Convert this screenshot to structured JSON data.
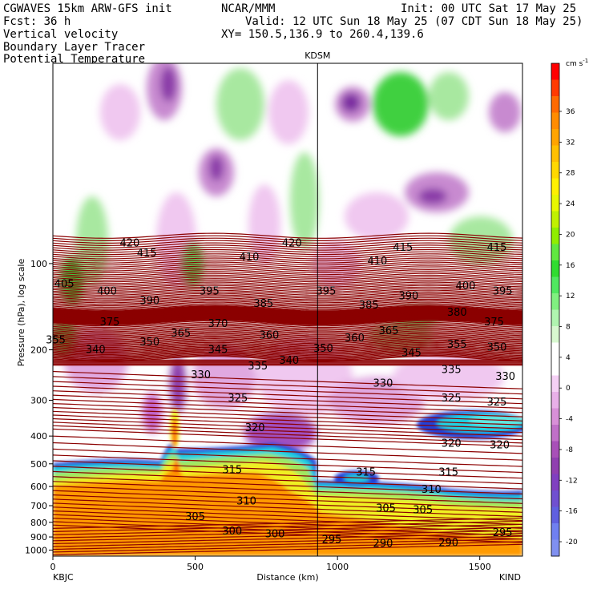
{
  "header": {
    "line1_left": "CGWAVES 15km ARW-GFS init",
    "line1_mid": "NCAR/MMM",
    "line1_right": "Init: 00 UTC Sat 17 May 25",
    "line2_left": "Fcst:   36 h",
    "line2_right": "Valid: 12 UTC Sun 18 May 25 (07 CDT Sun 18 May 25)",
    "line3_left": "Vertical velocity",
    "line3_right": "XY= 150.5,136.9 to 260.4,139.6",
    "line4_left": "Boundary Layer Tracer",
    "line5_left": "Potential Temperature",
    "line5_color": "#a00000"
  },
  "chart_data": {
    "type": "heatmap",
    "title": "",
    "xlabel": "Distance (km)",
    "ylabel": "Pressure (hPa), log scale",
    "xlim": [
      0,
      1650
    ],
    "ylim": [
      1050,
      20
    ],
    "y_scale": "log",
    "x_ticks": [
      0,
      500,
      1000,
      1500
    ],
    "y_ticks": [
      100,
      200,
      300,
      400,
      500,
      600,
      700,
      800,
      900,
      1000
    ],
    "left_station": "KBJC",
    "right_station": "KIND",
    "marker_station": "KDSM",
    "marker_distance": 930,
    "colorbar": {
      "unit_label": "cm s",
      "unit_exp": "-1",
      "labels": [
        36,
        32,
        28,
        24,
        20,
        16,
        12,
        8,
        4,
        0,
        -4,
        -8,
        -12,
        -16,
        -20
      ],
      "colors": [
        "#ff0000",
        "#ff3a00",
        "#ff6a00",
        "#ff8c00",
        "#ffa400",
        "#ffc000",
        "#ffd800",
        "#fff000",
        "#e8f800",
        "#c0f000",
        "#90ee00",
        "#60e840",
        "#30dc30",
        "#50e860",
        "#80f080",
        "#b0f4b0",
        "#d8f8d0",
        "#ffffff",
        "#ffffff",
        "#f4d0f4",
        "#e8b0e8",
        "#d890d8",
        "#c070c8",
        "#a850b8",
        "#9040b0",
        "#8040c0",
        "#7050d0",
        "#6060e0",
        "#7080f0",
        "#8090f0"
      ]
    },
    "theta_labels": [
      {
        "value": 420,
        "x": 270,
        "p": 85
      },
      {
        "value": 420,
        "x": 840,
        "p": 85
      },
      {
        "value": 415,
        "x": 330,
        "p": 92
      },
      {
        "value": 415,
        "x": 1230,
        "p": 88
      },
      {
        "value": 415,
        "x": 1560,
        "p": 88
      },
      {
        "value": 410,
        "x": 690,
        "p": 95
      },
      {
        "value": 410,
        "x": 1140,
        "p": 98
      },
      {
        "value": 405,
        "x": 40,
        "p": 118
      },
      {
        "value": 400,
        "x": 190,
        "p": 125
      },
      {
        "value": 400,
        "x": 1450,
        "p": 120
      },
      {
        "value": 395,
        "x": 550,
        "p": 125
      },
      {
        "value": 395,
        "x": 960,
        "p": 125
      },
      {
        "value": 395,
        "x": 1580,
        "p": 125
      },
      {
        "value": 390,
        "x": 340,
        "p": 135
      },
      {
        "value": 390,
        "x": 1250,
        "p": 130
      },
      {
        "value": 385,
        "x": 740,
        "p": 138
      },
      {
        "value": 385,
        "x": 1110,
        "p": 140
      },
      {
        "value": 380,
        "x": 1420,
        "p": 148
      },
      {
        "value": 375,
        "x": 1550,
        "p": 160
      },
      {
        "value": 375,
        "x": 200,
        "p": 160
      },
      {
        "value": 370,
        "x": 580,
        "p": 162
      },
      {
        "value": 365,
        "x": 450,
        "p": 175
      },
      {
        "value": 365,
        "x": 1180,
        "p": 172
      },
      {
        "value": 360,
        "x": 760,
        "p": 178
      },
      {
        "value": 360,
        "x": 1060,
        "p": 182
      },
      {
        "value": 355,
        "x": 10,
        "p": 185
      },
      {
        "value": 355,
        "x": 1420,
        "p": 192
      },
      {
        "value": 350,
        "x": 340,
        "p": 188
      },
      {
        "value": 350,
        "x": 950,
        "p": 198
      },
      {
        "value": 350,
        "x": 1560,
        "p": 196
      },
      {
        "value": 345,
        "x": 580,
        "p": 200
      },
      {
        "value": 345,
        "x": 1260,
        "p": 205
      },
      {
        "value": 340,
        "x": 150,
        "p": 200
      },
      {
        "value": 340,
        "x": 830,
        "p": 218
      },
      {
        "value": 335,
        "x": 720,
        "p": 228
      },
      {
        "value": 335,
        "x": 1400,
        "p": 235
      },
      {
        "value": 330,
        "x": 520,
        "p": 245
      },
      {
        "value": 330,
        "x": 1160,
        "p": 262
      },
      {
        "value": 330,
        "x": 1590,
        "p": 248
      },
      {
        "value": 325,
        "x": 650,
        "p": 295
      },
      {
        "value": 325,
        "x": 1400,
        "p": 295
      },
      {
        "value": 325,
        "x": 1560,
        "p": 305
      },
      {
        "value": 320,
        "x": 710,
        "p": 375
      },
      {
        "value": 320,
        "x": 1400,
        "p": 425
      },
      {
        "value": 320,
        "x": 1570,
        "p": 430
      },
      {
        "value": 315,
        "x": 630,
        "p": 525
      },
      {
        "value": 315,
        "x": 1100,
        "p": 535
      },
      {
        "value": 315,
        "x": 1390,
        "p": 535
      },
      {
        "value": 310,
        "x": 680,
        "p": 675
      },
      {
        "value": 310,
        "x": 1330,
        "p": 615
      },
      {
        "value": 305,
        "x": 500,
        "p": 765
      },
      {
        "value": 305,
        "x": 1170,
        "p": 715
      },
      {
        "value": 305,
        "x": 1300,
        "p": 725
      },
      {
        "value": 300,
        "x": 630,
        "p": 860
      },
      {
        "value": 300,
        "x": 780,
        "p": 880
      },
      {
        "value": 295,
        "x": 980,
        "p": 920
      },
      {
        "value": 295,
        "x": 1580,
        "p": 870
      },
      {
        "value": 290,
        "x": 1160,
        "p": 950
      },
      {
        "value": 290,
        "x": 1390,
        "p": 945
      }
    ]
  }
}
